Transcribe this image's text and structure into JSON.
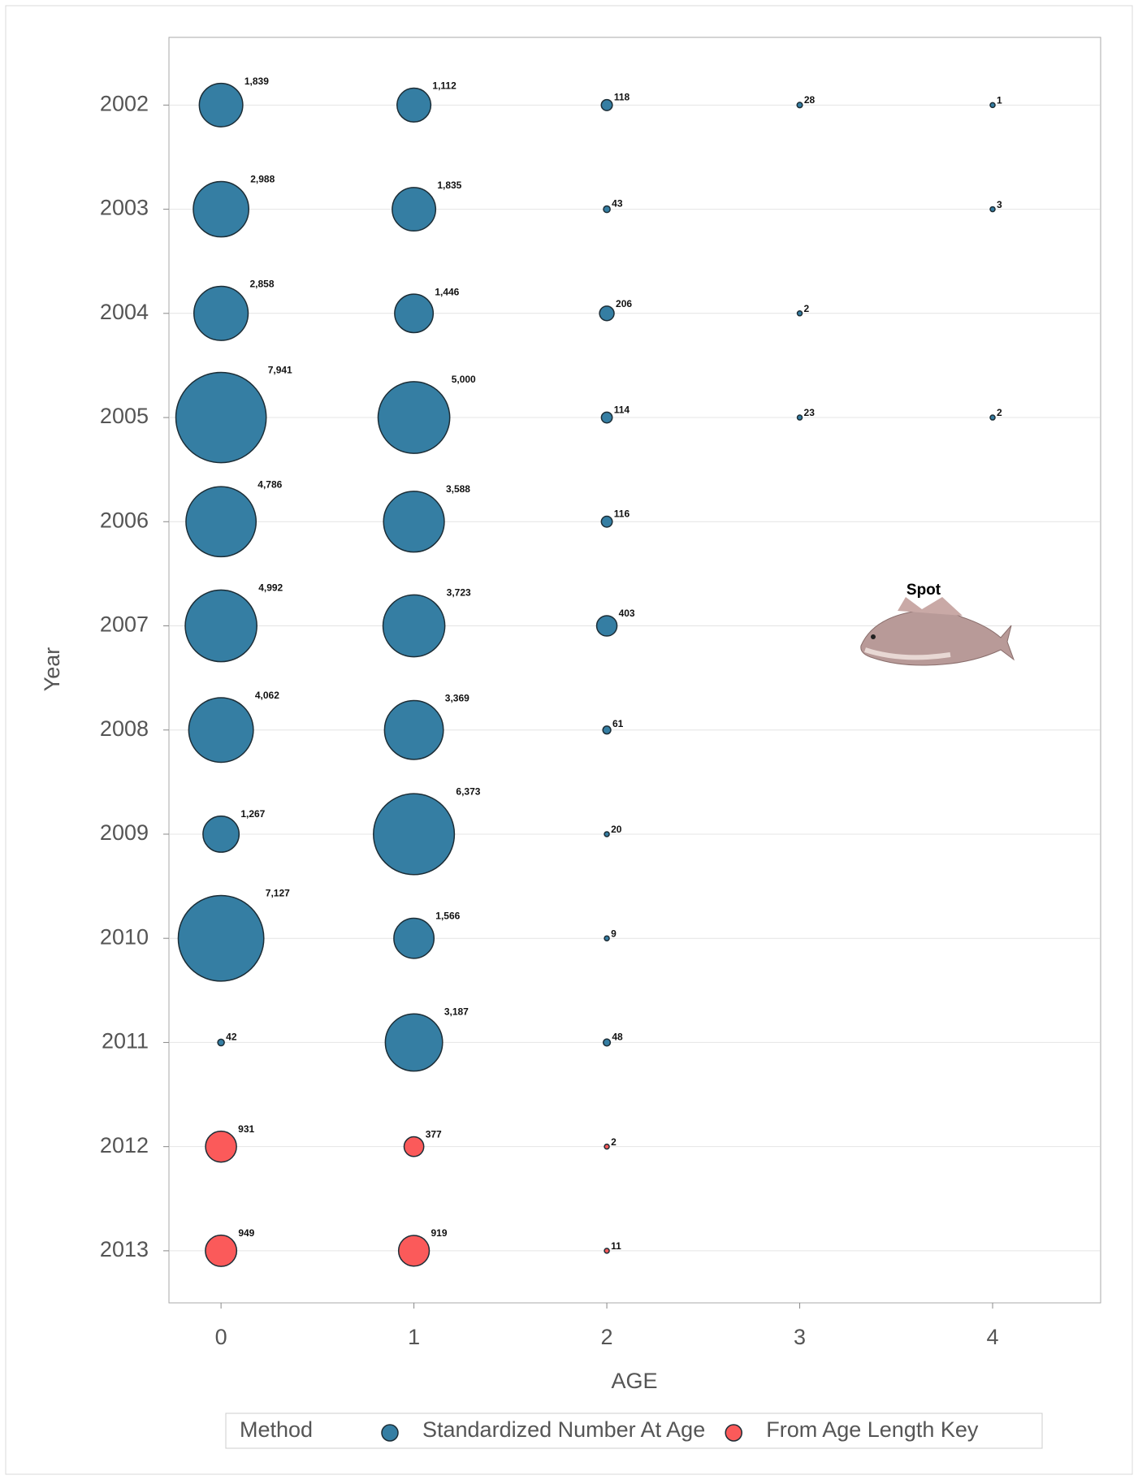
{
  "chart_data": {
    "type": "bubble",
    "x_label": "AGE",
    "y_label": "Year",
    "xlim": [
      -0.27,
      4.56
    ],
    "xticks": [
      0,
      1,
      2,
      3,
      4
    ],
    "ylim": [
      2013.5,
      2001.35
    ],
    "yticks": [
      2002,
      2003,
      2004,
      2005,
      2006,
      2007,
      2008,
      2009,
      2010,
      2011,
      2012,
      2013
    ],
    "grid": true,
    "legend_title": "Method",
    "legend_position": "bottom",
    "annotation": "Spot",
    "series": [
      {
        "name": "Standardized Number At Age",
        "color": "#357ea3",
        "x": [
          0,
          1,
          2,
          3,
          4,
          0,
          1,
          2,
          4,
          0,
          1,
          2,
          3,
          0,
          1,
          2,
          3,
          4,
          0,
          1,
          2,
          0,
          1,
          2,
          0,
          1,
          2,
          0,
          1,
          2,
          0,
          1,
          2,
          0,
          1,
          2
        ],
        "y": [
          2002,
          2002,
          2002,
          2002,
          2002,
          2003,
          2003,
          2003,
          2003,
          2004,
          2004,
          2004,
          2004,
          2005,
          2005,
          2005,
          2005,
          2005,
          2006,
          2006,
          2006,
          2007,
          2007,
          2007,
          2008,
          2008,
          2008,
          2009,
          2009,
          2009,
          2010,
          2010,
          2010,
          2011,
          2011,
          2011
        ],
        "size": [
          1839,
          1112,
          118,
          28,
          1,
          2988,
          1835,
          43,
          3,
          2858,
          1446,
          206,
          2,
          7941,
          5000,
          114,
          23,
          2,
          4786,
          3588,
          116,
          4992,
          3723,
          403,
          4062,
          3369,
          61,
          1267,
          6373,
          20,
          7127,
          1566,
          9,
          42,
          3187,
          48
        ],
        "value_labels": [
          "1,839",
          "1,112",
          "118",
          "28",
          "1",
          "2,988",
          "1,835",
          "43",
          "3",
          "2,858",
          "1,446",
          "206",
          "2",
          "7,941",
          "5,000",
          "114",
          "23",
          "2",
          "4,786",
          "3,588",
          "116",
          "4,992",
          "3,723",
          "403",
          "4,062",
          "3,369",
          "61",
          "1,267",
          "6,373",
          "20",
          "7,127",
          "1,566",
          "9",
          "42",
          "3,187",
          "48"
        ]
      },
      {
        "name": "From Age Length Key",
        "color": "#fb5a5a",
        "x": [
          0,
          1,
          2,
          0,
          1,
          2
        ],
        "y": [
          2012,
          2012,
          2012,
          2013,
          2013,
          2013
        ],
        "size": [
          931,
          377,
          2,
          949,
          919,
          11
        ],
        "value_labels": [
          "931",
          "377",
          "2",
          "949",
          "919",
          "11"
        ]
      }
    ]
  }
}
